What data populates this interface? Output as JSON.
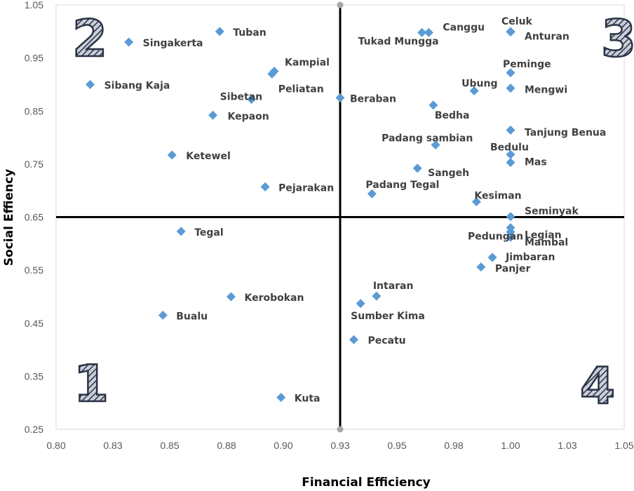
{
  "chart_data": {
    "type": "scatter",
    "title": "",
    "xlabel": "Financial Efficiency",
    "ylabel": "Social Effiency",
    "xlim": [
      0.8,
      1.05
    ],
    "ylim": [
      0.25,
      1.05
    ],
    "xticks": [
      "0.80",
      "0.83",
      "0.85",
      "0.88",
      "0.90",
      "0.93",
      "0.95",
      "0.98",
      "1.00",
      "1.03",
      "1.05"
    ],
    "yticks": [
      "0.25",
      "0.35",
      "0.45",
      "0.55",
      "0.65",
      "0.75",
      "0.85",
      "0.95",
      "1.05"
    ],
    "divider_x": 0.925,
    "divider_y": 0.65,
    "quadrant_labels": [
      "2",
      "3",
      "1",
      "4"
    ],
    "point_color": "#5b9bd5",
    "points": [
      {
        "label": "Tuban",
        "x": 0.872,
        "y": 1.0
      },
      {
        "label": "Singakerta",
        "x": 0.832,
        "y": 0.98
      },
      {
        "label": "Sibang Kaja",
        "x": 0.815,
        "y": 0.9
      },
      {
        "label": "Kampial",
        "x": 0.896,
        "y": 0.925
      },
      {
        "label": "Peliatan",
        "x": 0.895,
        "y": 0.92
      },
      {
        "label": "Sibetan",
        "x": 0.886,
        "y": 0.872
      },
      {
        "label": "Kepaon",
        "x": 0.869,
        "y": 0.842
      },
      {
        "label": "Ketewel",
        "x": 0.851,
        "y": 0.767
      },
      {
        "label": "Pejarakan",
        "x": 0.892,
        "y": 0.707
      },
      {
        "label": "Tegal",
        "x": 0.855,
        "y": 0.623
      },
      {
        "label": "Kerobokan",
        "x": 0.877,
        "y": 0.5
      },
      {
        "label": "Bualu",
        "x": 0.847,
        "y": 0.465
      },
      {
        "label": "Kuta",
        "x": 0.899,
        "y": 0.31
      },
      {
        "label": "Beraban",
        "x": 0.925,
        "y": 0.875
      },
      {
        "label": "Tukad Mungga",
        "x": 0.961,
        "y": 0.998
      },
      {
        "label": "Canggu",
        "x": 0.964,
        "y": 0.998
      },
      {
        "label": "Celuk",
        "x": 1.0,
        "y": 1.0
      },
      {
        "label": "Anturan",
        "x": 1.0,
        "y": 0.999
      },
      {
        "label": "Peminge",
        "x": 1.0,
        "y": 0.922
      },
      {
        "label": "Ubung",
        "x": 0.984,
        "y": 0.888
      },
      {
        "label": "Mengwi",
        "x": 1.0,
        "y": 0.893
      },
      {
        "label": "Bedha",
        "x": 0.966,
        "y": 0.861
      },
      {
        "label": "Tanjung Benua",
        "x": 1.0,
        "y": 0.814
      },
      {
        "label": "Padang sambian",
        "x": 0.967,
        "y": 0.786
      },
      {
        "label": "Bedulu",
        "x": 1.0,
        "y": 0.768
      },
      {
        "label": "Mas",
        "x": 1.0,
        "y": 0.753
      },
      {
        "label": "Sangeh",
        "x": 0.959,
        "y": 0.742
      },
      {
        "label": "Padang Tegal",
        "x": 0.939,
        "y": 0.694
      },
      {
        "label": "Kesiman",
        "x": 0.985,
        "y": 0.679
      },
      {
        "label": "Seminyak",
        "x": 1.0,
        "y": 0.651
      },
      {
        "label": "Pedungan",
        "x": 1.0,
        "y": 0.63
      },
      {
        "label": "Legian",
        "x": 1.0,
        "y": 0.622
      },
      {
        "label": "Mambal",
        "x": 1.0,
        "y": 0.612
      },
      {
        "label": "Jimbaran",
        "x": 0.992,
        "y": 0.574
      },
      {
        "label": "Panjer",
        "x": 0.987,
        "y": 0.556
      },
      {
        "label": "Intaran",
        "x": 0.941,
        "y": 0.501
      },
      {
        "label": "Sumber Kima",
        "x": 0.934,
        "y": 0.487
      },
      {
        "label": "Pecatu",
        "x": 0.931,
        "y": 0.419
      }
    ]
  }
}
